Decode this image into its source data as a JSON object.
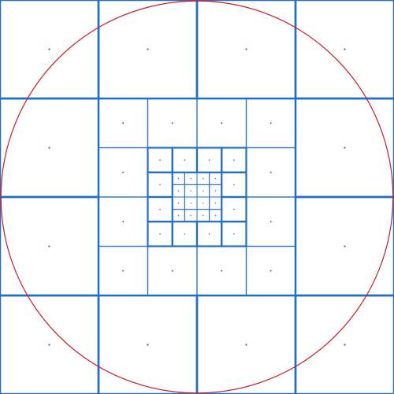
{
  "diagram": {
    "description_visible_text": "",
    "colors": {
      "background": "#ffffff",
      "grid_line": "#1f6fc8",
      "grid_line_thin": "#4a8fd8",
      "center_dot": "#1f6fc8",
      "circle": "#d01a22"
    },
    "grid": {
      "outer_divisions": 4,
      "refinement_levels": 4
    },
    "circle": {
      "radius_fraction": 0.995
    },
    "icons": [
      "center-dot",
      "circle-outline"
    ]
  }
}
